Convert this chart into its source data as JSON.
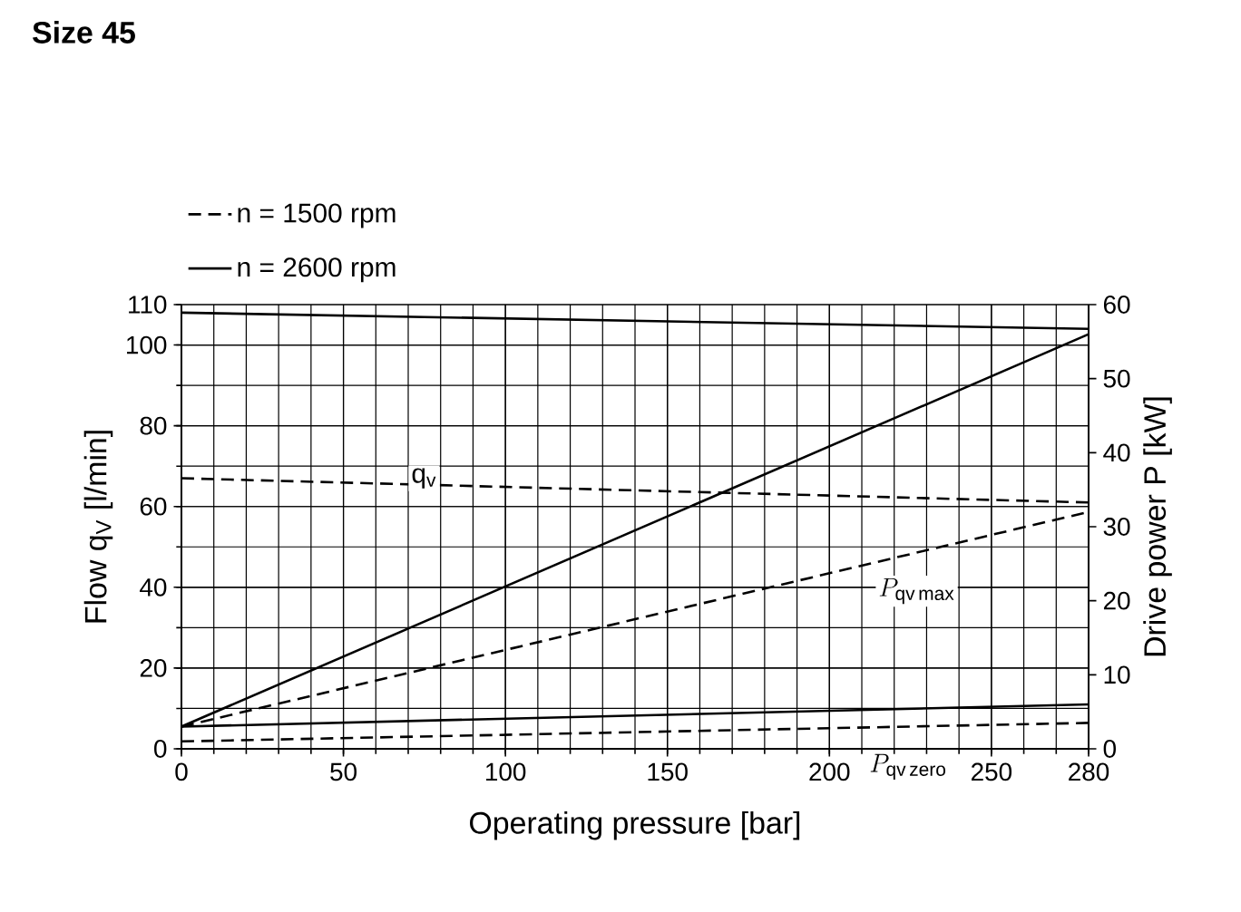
{
  "chart_data": {
    "type": "line",
    "title": "Size 45",
    "xlabel": "Operating pressure [bar]",
    "ylabel": "Flow q$_{V}$ [l/min]",
    "y2label": "Drive power P [kW]",
    "x": [
      0,
      280
    ],
    "xlim": [
      0,
      280
    ],
    "xticks": [
      0,
      50,
      100,
      150,
      200,
      250,
      280
    ],
    "ylim": [
      0,
      110
    ],
    "yticks": [
      0,
      20,
      40,
      60,
      80,
      100,
      110
    ],
    "y2lim": [
      0,
      60
    ],
    "y2ticks": [
      0,
      10,
      20,
      30,
      40,
      50,
      60
    ],
    "grid": true,
    "legend": "top left",
    "marker": "none",
    "series": [
      {
        "name": "n = 1500 rpm",
        "color": "#000000",
        "line_style": "dashed",
        "values": [
          67,
          61
        ]
      },
      {
        "name": "n = 2600 rpm",
        "color": "#000000",
        "line_style": "solid",
        "values": [
          108,
          104
        ]
      },
      {
        "color": "#000000",
        "line_style": "dashed",
        "axis": "y2",
        "values": [
          3,
          32
        ]
      },
      {
        "color": "#000000",
        "line_style": "solid",
        "axis": "y2",
        "values": [
          3,
          56
        ]
      },
      {
        "color": "#000000",
        "line_style": "dashed",
        "axis": "y2",
        "values": [
          1,
          3.5
        ]
      },
      {
        "color": "#000000",
        "line_style": "solid",
        "axis": "y2",
        "values": [
          3,
          6
        ]
      }
    ],
    "annotations": [
      {
        "text": "q$_{v}$",
        "x": 70,
        "y": 67
      },
      "P_{\\mathrm{qv\\,max}}",
      "P_{\\mathrm{qv\\,zero}}"
    ]
  }
}
